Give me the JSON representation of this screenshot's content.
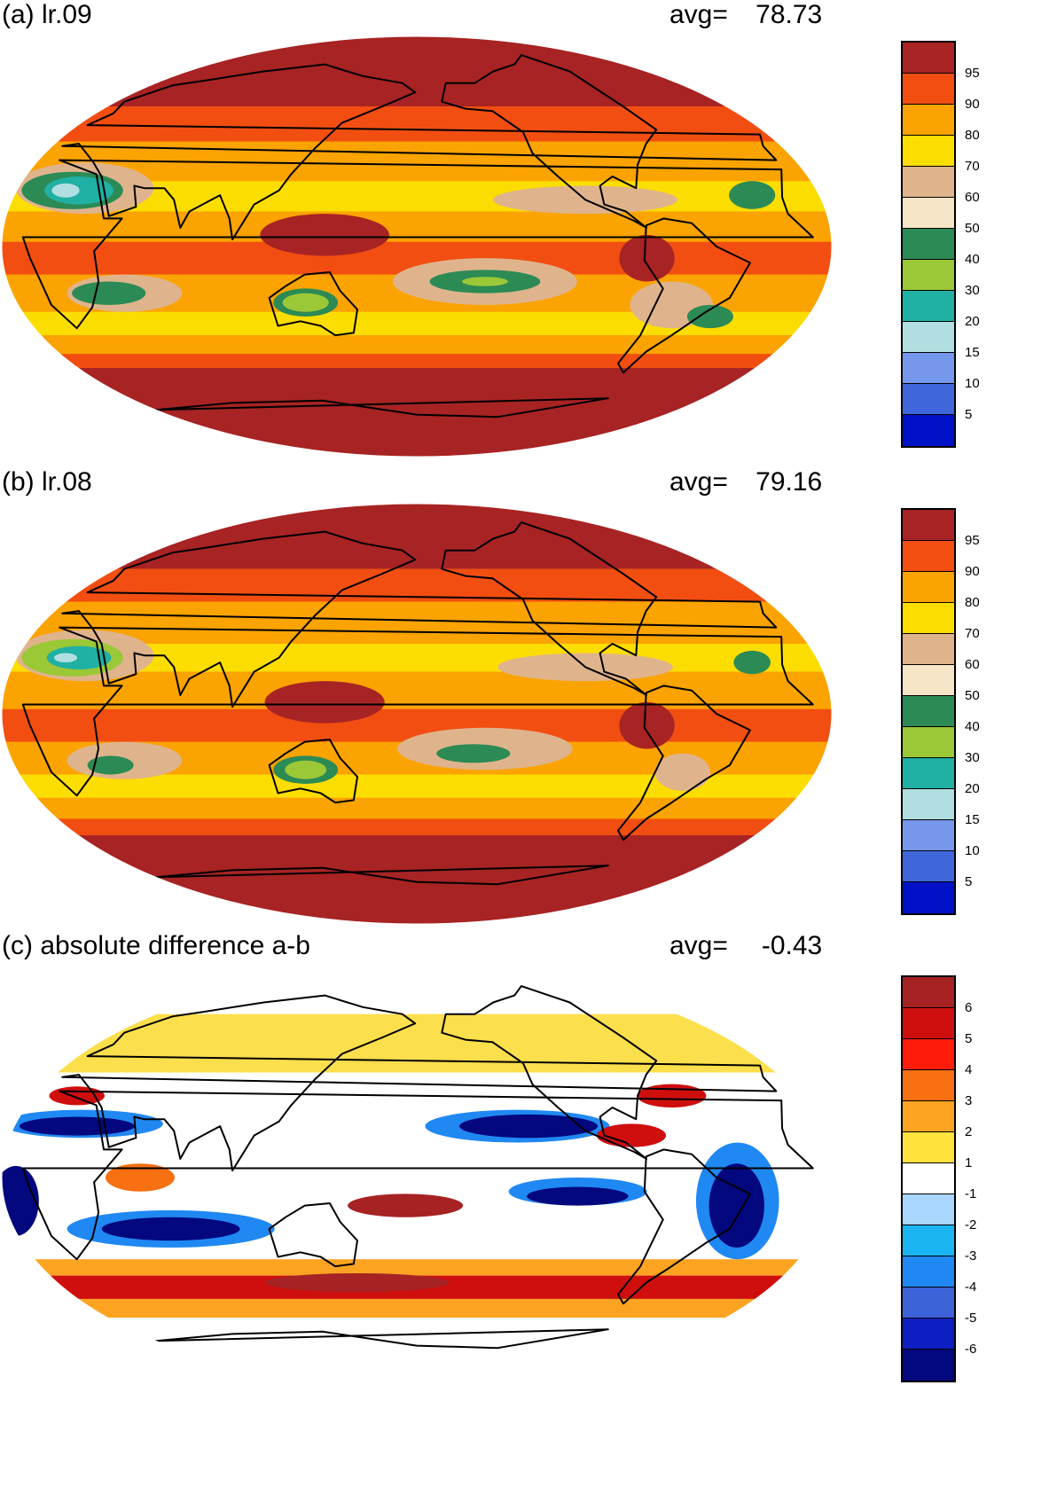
{
  "panels": [
    {
      "title": "(a) lr.09",
      "avg_label": "avg=",
      "avg_value": "78.73",
      "colorbar": {
        "labels": [
          "95",
          "90",
          "80",
          "70",
          "60",
          "50",
          "40",
          "30",
          "20",
          "15",
          "10",
          "5"
        ],
        "colors": [
          "#a82323",
          "#f24e12",
          "#fba300",
          "#fcdd00",
          "#dfb48c",
          "#f6e5c6",
          "#2c8a55",
          "#9ac836",
          "#20b0a4",
          "#b1dfe1",
          "#7598ec",
          "#3f67db",
          "#0012c8"
        ]
      },
      "map": {
        "kind": "field",
        "ocean": "#fba300",
        "bands": [
          {
            "lat": 90,
            "color": "#a82323"
          },
          {
            "lat": 60,
            "color": "#f24e12"
          },
          {
            "lat": 45,
            "color": "#fba300"
          },
          {
            "lat": 28,
            "color": "#fcdd00"
          },
          {
            "lat": 15,
            "color": "#fba300"
          },
          {
            "lat": 2,
            "color": "#f24e12"
          },
          {
            "lat": -12,
            "color": "#fba300"
          },
          {
            "lat": -28,
            "color": "#fcdd00"
          },
          {
            "lat": -38,
            "color": "#fba300"
          },
          {
            "lat": -46,
            "color": "#f24e12"
          },
          {
            "lat": -52,
            "color": "#a82323"
          }
        ],
        "blobs": [
          {
            "lon": 30,
            "lat": 25,
            "rx": 30,
            "ry": 11,
            "color": "#dfb48c"
          },
          {
            "lon": 25,
            "lat": 24,
            "rx": 22,
            "ry": 8,
            "color": "#2c8a55"
          },
          {
            "lon": 28,
            "lat": 24,
            "rx": 15,
            "ry": 6,
            "color": "#20b0a4"
          },
          {
            "lon": 22,
            "lat": 24,
            "rx": 6,
            "ry": 3,
            "color": "#b1dfe1"
          },
          {
            "lon": 50,
            "lat": -20,
            "rx": 25,
            "ry": 8,
            "color": "#dfb48c"
          },
          {
            "lon": 43,
            "lat": -20,
            "rx": 16,
            "ry": 5,
            "color": "#2c8a55"
          },
          {
            "lon": 130,
            "lat": -24,
            "rx": 14,
            "ry": 6,
            "color": "#2c8a55"
          },
          {
            "lon": 130,
            "lat": -24,
            "rx": 10,
            "ry": 4,
            "color": "#9ac836"
          },
          {
            "lon": 210,
            "lat": -15,
            "rx": 40,
            "ry": 10,
            "color": "#dfb48c"
          },
          {
            "lon": 210,
            "lat": -15,
            "rx": 24,
            "ry": 5,
            "color": "#2c8a55"
          },
          {
            "lon": 210,
            "lat": -15,
            "rx": 10,
            "ry": 2,
            "color": "#9ac836"
          },
          {
            "lon": 140,
            "lat": 5,
            "rx": 28,
            "ry": 9,
            "color": "#a82323"
          },
          {
            "lon": 280,
            "lat": -5,
            "rx": 12,
            "ry": 10,
            "color": "#a82323"
          },
          {
            "lon": 255,
            "lat": 20,
            "rx": 40,
            "ry": 6,
            "color": "#dfb48c"
          },
          {
            "lon": 330,
            "lat": 22,
            "rx": 10,
            "ry": 6,
            "color": "#2c8a55"
          },
          {
            "lon": 295,
            "lat": -25,
            "rx": 18,
            "ry": 10,
            "color": "#dfb48c"
          },
          {
            "lon": 315,
            "lat": -30,
            "rx": 10,
            "ry": 5,
            "color": "#2c8a55"
          }
        ]
      }
    },
    {
      "title": "(b) lr.08",
      "avg_label": "avg=",
      "avg_value": "79.16",
      "colorbar": {
        "labels": [
          "95",
          "90",
          "80",
          "70",
          "60",
          "50",
          "40",
          "30",
          "20",
          "15",
          "10",
          "5"
        ],
        "colors": [
          "#a82323",
          "#f24e12",
          "#fba300",
          "#fcdd00",
          "#dfb48c",
          "#f6e5c6",
          "#2c8a55",
          "#9ac836",
          "#20b0a4",
          "#b1dfe1",
          "#7598ec",
          "#3f67db",
          "#0012c8"
        ]
      },
      "map": {
        "kind": "field",
        "ocean": "#fba300",
        "bands": [
          {
            "lat": 90,
            "color": "#a82323"
          },
          {
            "lat": 62,
            "color": "#f24e12"
          },
          {
            "lat": 48,
            "color": "#fba300"
          },
          {
            "lat": 30,
            "color": "#fcdd00"
          },
          {
            "lat": 18,
            "color": "#fba300"
          },
          {
            "lat": 2,
            "color": "#f24e12"
          },
          {
            "lat": -12,
            "color": "#fba300"
          },
          {
            "lat": -26,
            "color": "#fcdd00"
          },
          {
            "lat": -36,
            "color": "#fba300"
          },
          {
            "lat": -45,
            "color": "#f24e12"
          },
          {
            "lat": -52,
            "color": "#a82323"
          }
        ],
        "blobs": [
          {
            "lon": 30,
            "lat": 25,
            "rx": 30,
            "ry": 11,
            "color": "#dfb48c"
          },
          {
            "lon": 25,
            "lat": 24,
            "rx": 22,
            "ry": 8,
            "color": "#9ac836"
          },
          {
            "lon": 28,
            "lat": 24,
            "rx": 14,
            "ry": 5,
            "color": "#20b0a4"
          },
          {
            "lon": 22,
            "lat": 24,
            "rx": 5,
            "ry": 2,
            "color": "#b1dfe1"
          },
          {
            "lon": 50,
            "lat": -20,
            "rx": 25,
            "ry": 8,
            "color": "#dfb48c"
          },
          {
            "lon": 43,
            "lat": -22,
            "rx": 10,
            "ry": 4,
            "color": "#2c8a55"
          },
          {
            "lon": 130,
            "lat": -24,
            "rx": 14,
            "ry": 6,
            "color": "#2c8a55"
          },
          {
            "lon": 130,
            "lat": -24,
            "rx": 9,
            "ry": 4,
            "color": "#9ac836"
          },
          {
            "lon": 210,
            "lat": -15,
            "rx": 38,
            "ry": 9,
            "color": "#dfb48c"
          },
          {
            "lon": 205,
            "lat": -17,
            "rx": 16,
            "ry": 4,
            "color": "#2c8a55"
          },
          {
            "lon": 140,
            "lat": 5,
            "rx": 26,
            "ry": 9,
            "color": "#a82323"
          },
          {
            "lon": 280,
            "lat": -5,
            "rx": 12,
            "ry": 10,
            "color": "#a82323"
          },
          {
            "lon": 255,
            "lat": 20,
            "rx": 38,
            "ry": 6,
            "color": "#dfb48c"
          },
          {
            "lon": 330,
            "lat": 22,
            "rx": 8,
            "ry": 5,
            "color": "#2c8a55"
          },
          {
            "lon": 300,
            "lat": -25,
            "rx": 12,
            "ry": 8,
            "color": "#dfb48c"
          }
        ]
      }
    },
    {
      "title": "(c) absolute difference a-b",
      "avg_label": "avg=",
      "avg_value": "-0.43",
      "colorbar": {
        "labels": [
          "6",
          "5",
          "4",
          "3",
          "2",
          "1",
          "-1",
          "-2",
          "-3",
          "-4",
          "-5",
          "-6"
        ],
        "colors": [
          "#a62223",
          "#cf0e0e",
          "#ff1c0a",
          "#f77012",
          "#fca421",
          "#ffe23c",
          "#ffffff",
          "#a8d6fc",
          "#1ab5f2",
          "#2088f2",
          "#3d63d9",
          "#0d1fc2",
          "#03087e"
        ]
      },
      "map": {
        "kind": "diff",
        "ocean": "#ffffff",
        "bands": [
          {
            "lat": 90,
            "color": "#ffffff"
          },
          {
            "lat": 70,
            "color": "#fcdf4c"
          },
          {
            "lat": 45,
            "color": "#ffffff"
          },
          {
            "lat": 15,
            "color": "#ffffff"
          },
          {
            "lat": -10,
            "color": "#ffffff"
          },
          {
            "lat": -35,
            "color": "#fca421"
          },
          {
            "lat": -42,
            "color": "#cf0e0e"
          },
          {
            "lat": -52,
            "color": "#fca421"
          },
          {
            "lat": -60,
            "color": "#ffffff"
          }
        ],
        "blobs": [
          {
            "lon": 30,
            "lat": 23,
            "rx": 35,
            "ry": 6,
            "color": "#2088f2"
          },
          {
            "lon": 28,
            "lat": 22,
            "rx": 25,
            "ry": 4,
            "color": "#03087e"
          },
          {
            "lon": 70,
            "lat": -22,
            "rx": 45,
            "ry": 8,
            "color": "#2088f2"
          },
          {
            "lon": 70,
            "lat": -22,
            "rx": 30,
            "ry": 5,
            "color": "#03087e"
          },
          {
            "lon": 225,
            "lat": 22,
            "rx": 40,
            "ry": 7,
            "color": "#2088f2"
          },
          {
            "lon": 230,
            "lat": 22,
            "rx": 30,
            "ry": 5,
            "color": "#03087e"
          },
          {
            "lon": 250,
            "lat": -6,
            "rx": 30,
            "ry": 6,
            "color": "#2088f2"
          },
          {
            "lon": 250,
            "lat": -8,
            "rx": 22,
            "ry": 4,
            "color": "#03087e"
          },
          {
            "lon": 320,
            "lat": -10,
            "rx": 18,
            "ry": 25,
            "color": "#2088f2"
          },
          {
            "lon": 320,
            "lat": -12,
            "rx": 12,
            "ry": 18,
            "color": "#03087e"
          },
          {
            "lon": 5,
            "lat": -10,
            "rx": 10,
            "ry": 15,
            "color": "#03087e"
          },
          {
            "lon": 175,
            "lat": -12,
            "rx": 25,
            "ry": 5,
            "color": "#a62223"
          },
          {
            "lon": 60,
            "lat": 0,
            "rx": 15,
            "ry": 6,
            "color": "#f77012"
          },
          {
            "lon": 275,
            "lat": 18,
            "rx": 15,
            "ry": 5,
            "color": "#cf0e0e"
          },
          {
            "lon": 300,
            "lat": 35,
            "rx": 15,
            "ry": 5,
            "color": "#cf0e0e"
          },
          {
            "lon": 20,
            "lat": 35,
            "rx": 12,
            "ry": 4,
            "color": "#cf0e0e"
          },
          {
            "lon": 150,
            "lat": -45,
            "rx": 40,
            "ry": 4,
            "color": "#a62223"
          }
        ]
      }
    }
  ]
}
